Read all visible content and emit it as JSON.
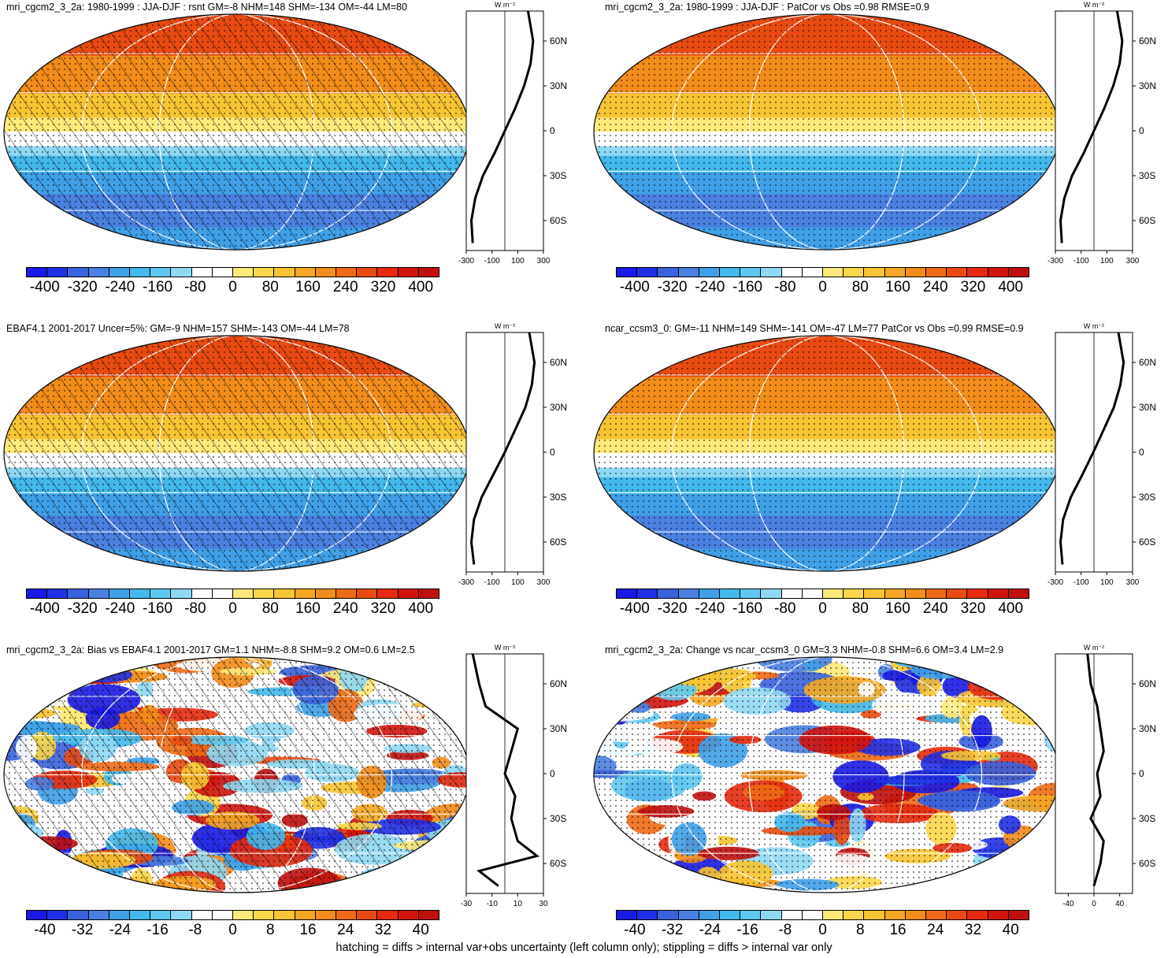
{
  "colormap": [
    "#1a1ae6",
    "#2030e6",
    "#3a62dd",
    "#4a80e0",
    "#3fa0e8",
    "#43b8ec",
    "#5ec8f0",
    "#8fd8f3",
    "#ffffff",
    "#ffffff",
    "#fde97a",
    "#f9d64a",
    "#f7c433",
    "#f5a623",
    "#f28c1a",
    "#ee6a16",
    "#e84a12",
    "#e52a10",
    "#d2140e",
    "#c0100e"
  ],
  "colorbar_labels_sw": [
    "-400",
    "-320",
    "-240",
    "-160",
    "-80",
    "0",
    "80",
    "160",
    "240",
    "320",
    "400"
  ],
  "colorbar_labels_bias": [
    "-40",
    "-32",
    "-24",
    "-16",
    "-8",
    "0",
    "8",
    "16",
    "24",
    "32",
    "40"
  ],
  "unit_label": "W m⁻²",
  "lat_labels": [
    "60N",
    "30N",
    "0",
    "30S",
    "60S"
  ],
  "zonal_xticks_sw": [
    "-300",
    "-100",
    "100",
    "300"
  ],
  "zonal_xticks_bias_left": [
    "-30",
    "-10",
    "10",
    "30"
  ],
  "zonal_xticks_bias_right": [
    "-40",
    "0",
    "40"
  ],
  "panels": [
    {
      "title": "mri_cgcm2_3_2a: 1980-1999 : JJA-DJF : rsnt GM=-8 NHM=148 SHM=-134 OM=-44 LM=80",
      "kind": "sw",
      "hatch": true
    },
    {
      "title": "mri_cgcm2_3_2a: 1980-1999 : JJA-DJF : PatCor vs Obs =0.98 RMSE=0.9",
      "kind": "sw",
      "hatch": false
    },
    {
      "title": "EBAF4.1 2001-2017 Uncer=5%: GM=-9 NHM=157 SHM=-143 OM=-44 LM=78",
      "kind": "sw",
      "hatch": true
    },
    {
      "title": "ncar_ccsm3_0: GM=-11 NHM=149 SHM=-141 OM=-47 LM=77 PatCor vs Obs =0.99 RMSE=0.9",
      "kind": "sw",
      "hatch": false
    },
    {
      "title": "mri_cgcm2_3_2a: Bias vs EBAF4.1 2001-2017 GM=1.1 NHM=-8.8 SHM=9.2 OM=0.6 LM=2.5",
      "kind": "bias",
      "hatch": true
    },
    {
      "title": "mri_cgcm2_3_2a: Change vs ncar_ccsm3_0 GM=3.3 NHM=-0.8 SHM=6.6 OM=3.4 LM=2.9",
      "kind": "bias",
      "hatch": false
    }
  ],
  "footer": "hatching = diffs > internal var+obs uncertainty (left column only); stippling = diffs > internal var only",
  "chart_data": [
    {
      "type": "heatmap",
      "title": "mri_cgcm2_3_2a: 1980-1999 : JJA-DJF : rsnt GM=-8 NHM=148 SHM=-134 OM=-44 LM=80",
      "zonal_series": [
        {
          "color": "black",
          "lat": [
            80,
            60,
            45,
            30,
            15,
            0,
            -15,
            -30,
            -45,
            -60,
            -75
          ],
          "values": [
            180,
            220,
            200,
            150,
            80,
            0,
            -80,
            -170,
            -230,
            -260,
            -250
          ]
        }
      ],
      "xlim": [
        -300,
        300
      ]
    },
    {
      "type": "heatmap",
      "title": "mri_cgcm2_3_2a: 1980-1999 : JJA-DJF : PatCor vs Obs =0.98 RMSE=0.9",
      "zonal_series": [
        {
          "color": "black",
          "lat": [
            80,
            60,
            45,
            30,
            15,
            0,
            -15,
            -30,
            -45,
            -60,
            -75
          ],
          "values": [
            180,
            220,
            200,
            150,
            80,
            0,
            -80,
            -170,
            -230,
            -260,
            -250
          ]
        }
      ],
      "xlim": [
        -300,
        300
      ]
    },
    {
      "type": "heatmap",
      "title": "EBAF4.1 2001-2017 Uncer=5%: GM=-9 NHM=157 SHM=-143 OM=-44 LM=78",
      "zonal_series": [
        {
          "color": "black",
          "lat": [
            80,
            60,
            45,
            30,
            15,
            0,
            -15,
            -30,
            -45,
            -60,
            -75
          ],
          "values": [
            190,
            230,
            210,
            160,
            80,
            0,
            -90,
            -180,
            -240,
            -260,
            -240
          ]
        }
      ],
      "xlim": [
        -300,
        300
      ]
    },
    {
      "type": "heatmap",
      "title": "ncar_ccsm3_0: GM=-11 NHM=149 SHM=-141 OM=-47 LM=77 PatCor vs Obs =0.99 RMSE=0.9",
      "zonal_series": [
        {
          "color": "black",
          "lat": [
            80,
            60,
            45,
            30,
            15,
            0,
            -15,
            -30,
            -45,
            -60,
            -75
          ],
          "values": [
            190,
            230,
            205,
            155,
            75,
            -5,
            -90,
            -180,
            -240,
            -260,
            -245
          ]
        }
      ],
      "xlim": [
        -300,
        300
      ]
    },
    {
      "type": "heatmap",
      "title": "mri_cgcm2_3_2a: Bias vs EBAF4.1 2001-2017 GM=1.1 NHM=-8.8 SHM=9.2 OM=0.6 LM=2.5",
      "zonal_series": [
        {
          "color": "black",
          "lat": [
            80,
            60,
            45,
            30,
            15,
            0,
            -15,
            -30,
            -45,
            -55,
            -65,
            -75
          ],
          "values": [
            -25,
            -20,
            -15,
            10,
            5,
            0,
            8,
            5,
            10,
            25,
            -20,
            -5
          ]
        }
      ],
      "xlim": [
        -30,
        30
      ]
    },
    {
      "type": "heatmap",
      "title": "mri_cgcm2_3_2a: Change vs ncar_ccsm3_0 GM=3.3 NHM=-0.8 SHM=6.6 OM=3.4 LM=2.9",
      "zonal_series": [
        {
          "color": "black",
          "lat": [
            80,
            60,
            45,
            30,
            15,
            0,
            -15,
            -30,
            -45,
            -60,
            -75
          ],
          "values": [
            -10,
            -5,
            5,
            10,
            15,
            5,
            10,
            -5,
            15,
            10,
            0
          ]
        }
      ],
      "xlim": [
        -60,
        60
      ]
    }
  ]
}
